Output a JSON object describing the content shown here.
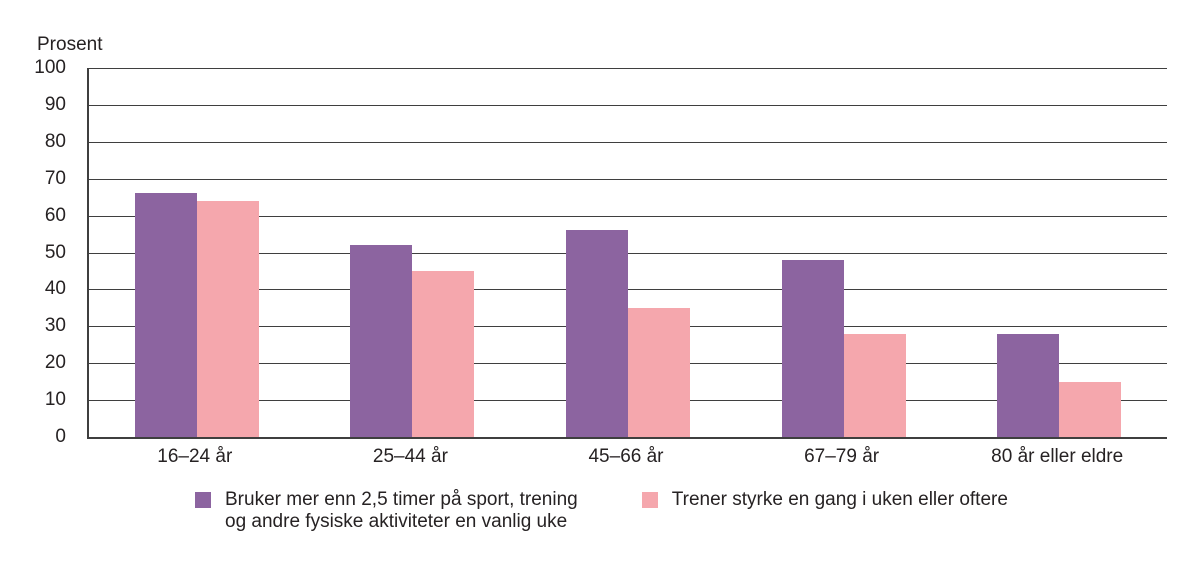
{
  "chart_data": {
    "type": "bar",
    "title": "",
    "ylabel": "Prosent",
    "xlabel": "",
    "categories": [
      "16–24 år",
      "25–44 år",
      "45–66 år",
      "67–79 år",
      "80 år eller eldre"
    ],
    "series": [
      {
        "name": "Bruker mer enn 2,5 timer på sport, trening og andre fysiske aktiviteter en vanlig uke",
        "color": "#8c64a0",
        "values": [
          66,
          52,
          56,
          48,
          28
        ]
      },
      {
        "name": "Trener styrke en gang i uken eller oftere",
        "color": "#f5a7ad",
        "values": [
          64,
          45,
          35,
          28,
          15
        ]
      }
    ],
    "ylim": [
      0,
      100
    ],
    "y_ticks": [
      0,
      10,
      20,
      30,
      40,
      50,
      60,
      70,
      80,
      90,
      100
    ],
    "grid": "horizontal",
    "legend_position": "bottom",
    "colors": {
      "grid": "#3f3f3f",
      "axis": "#3f3f3f",
      "text": "#262223",
      "background": "#ffffff"
    }
  },
  "legend": {
    "items": [
      {
        "swatch_color": "#8c64a0",
        "lines": [
          "Bruker mer enn 2,5 timer på sport, trening",
          "og andre fysiske aktiviteter en vanlig uke"
        ]
      },
      {
        "swatch_color": "#f5a7ad",
        "lines": [
          "Trener styrke en gang i uken eller oftere"
        ]
      }
    ]
  }
}
